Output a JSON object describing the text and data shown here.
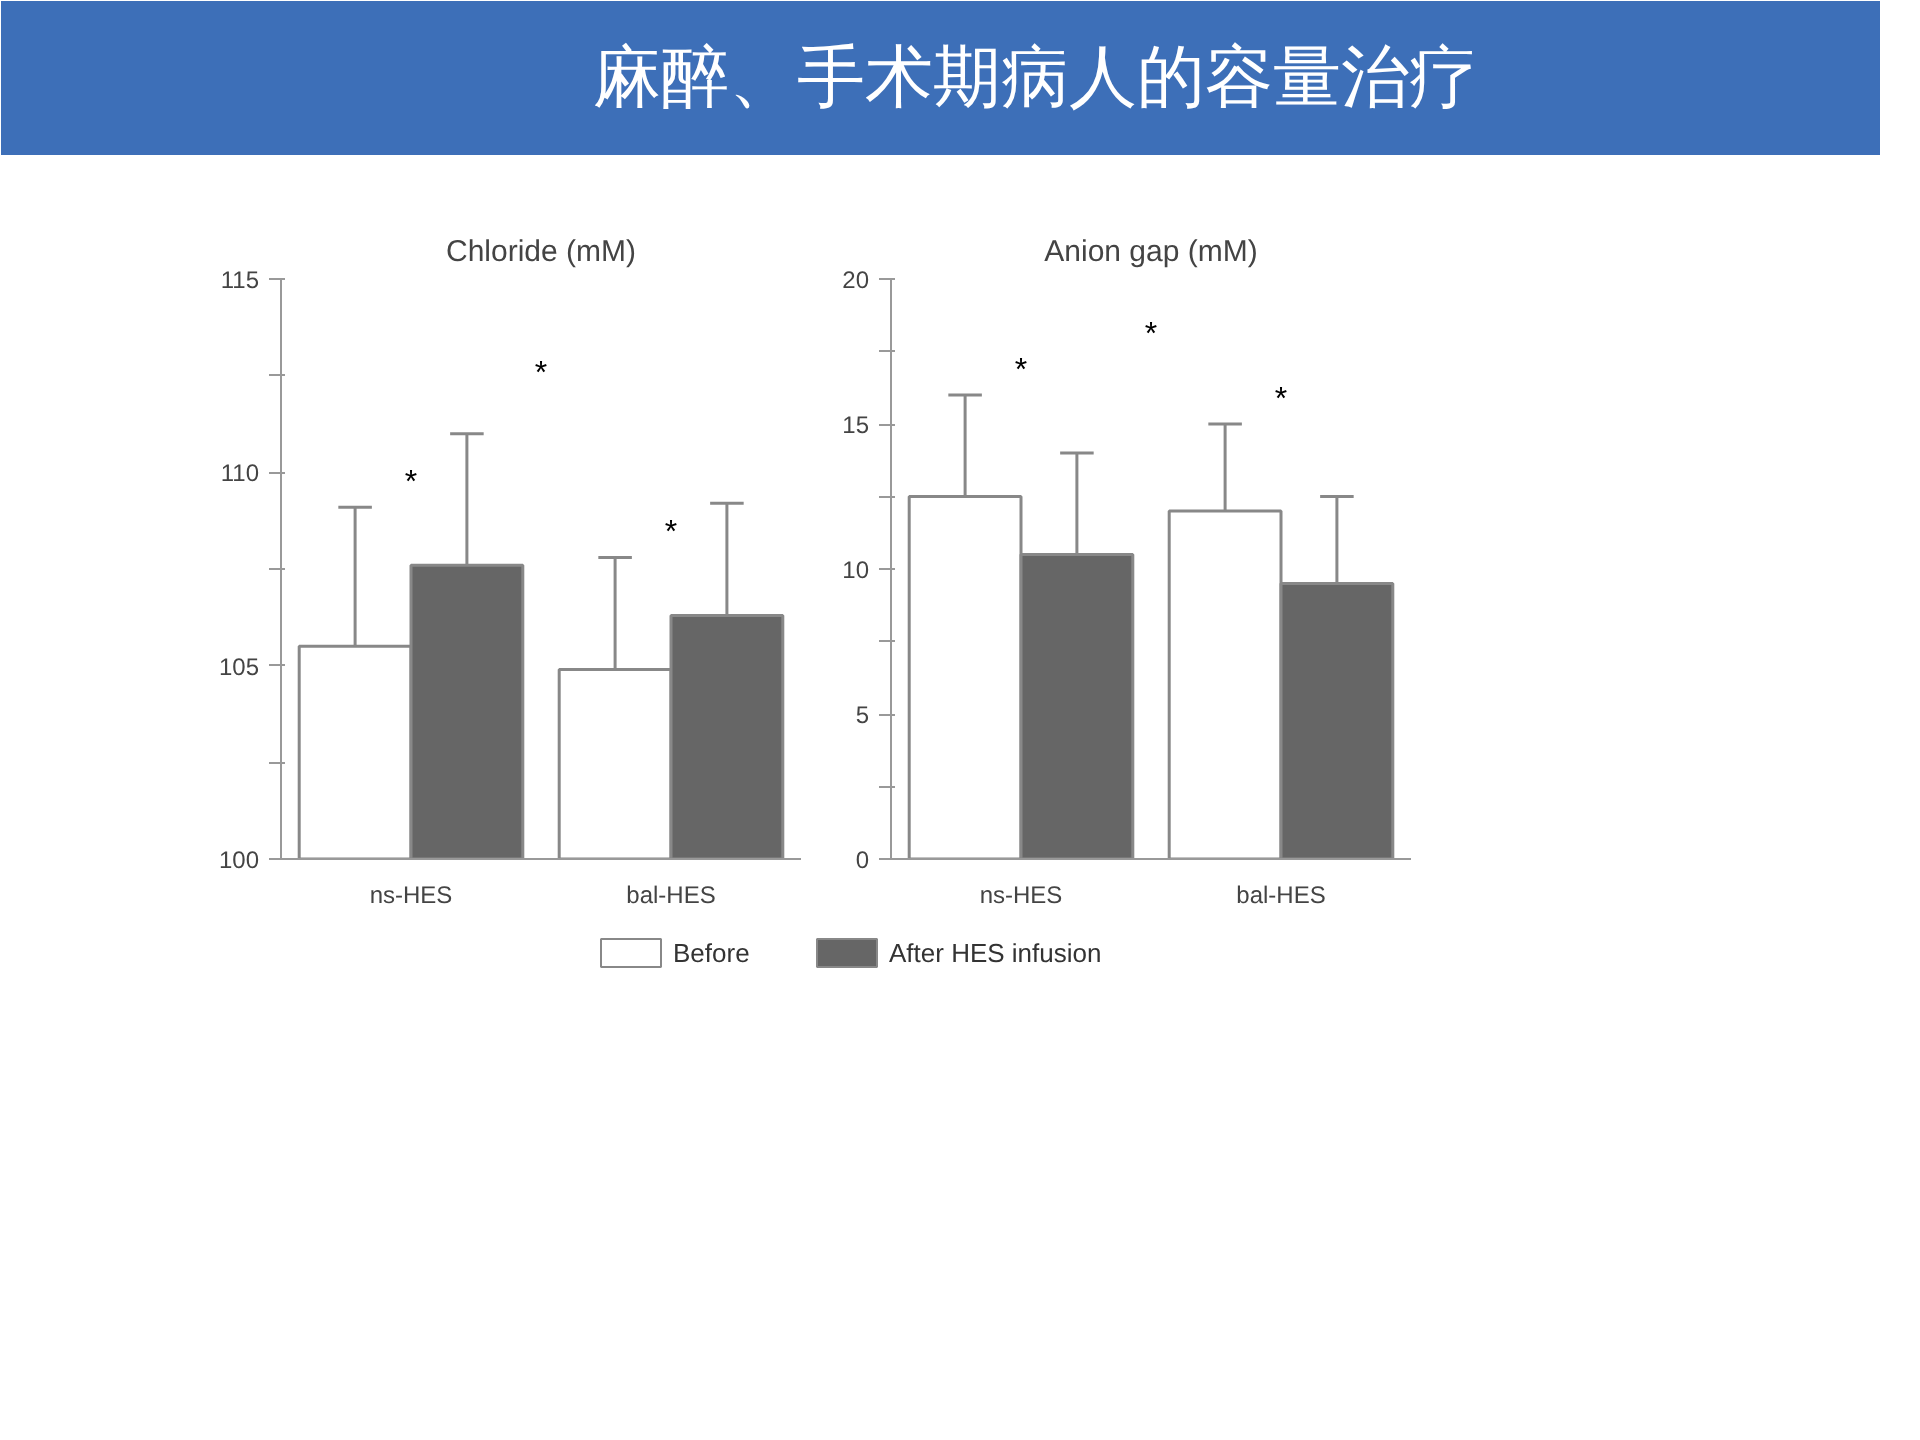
{
  "chart_data": [
    {
      "type": "bar",
      "title": "Chloride (mM)",
      "categories": [
        "ns-HES",
        "bal-HES"
      ],
      "series": [
        {
          "color": "#ffffff",
          "values": [
            105.5,
            104.9
          ],
          "errors": [
            3.6,
            2.9
          ]
        },
        {
          "color": "#666666",
          "values": [
            107.6,
            106.3
          ],
          "errors": [
            3.4,
            2.9
          ]
        }
      ],
      "ylim": [
        100,
        115
      ],
      "yticks": [
        100,
        {
          "value": 102.5,
          "label": null
        },
        105,
        {
          "value": 107.5,
          "label": null
        },
        110,
        {
          "value": 112.5,
          "label": null
        },
        115
      ],
      "annotations": [
        "麻醉、手术期病人的容量治疗",
        "*",
        "*",
        "*"
      ]
    },
    {
      "type": "bar",
      "title": "Anion gap (mM)",
      "categories": [
        "ns-HES",
        "bal-HES"
      ],
      "series": [
        {
          "name": "Before",
          "color": "#ffffff",
          "values": [
            12.5,
            12
          ],
          "errors": [
            3.5,
            3
          ]
        },
        {
          "name": "After HES infusion",
          "color": "#666666",
          "values": [
            10.5,
            9.5
          ],
          "errors": [
            3.5,
            3
          ]
        }
      ],
      "ylim": [
        0,
        20
      ],
      "yticks": [
        0,
        {
          "value": 2.5,
          "label": null
        },
        5,
        {
          "value": 7.5,
          "label": null
        },
        10,
        {
          "value": 12.5,
          "label": null
        },
        15,
        {
          "value": 17.5,
          "label": null
        },
        20
      ],
      "legend": "bottom",
      "annotations": [
        "*",
        "*",
        "*"
      ]
    }
  ]
}
